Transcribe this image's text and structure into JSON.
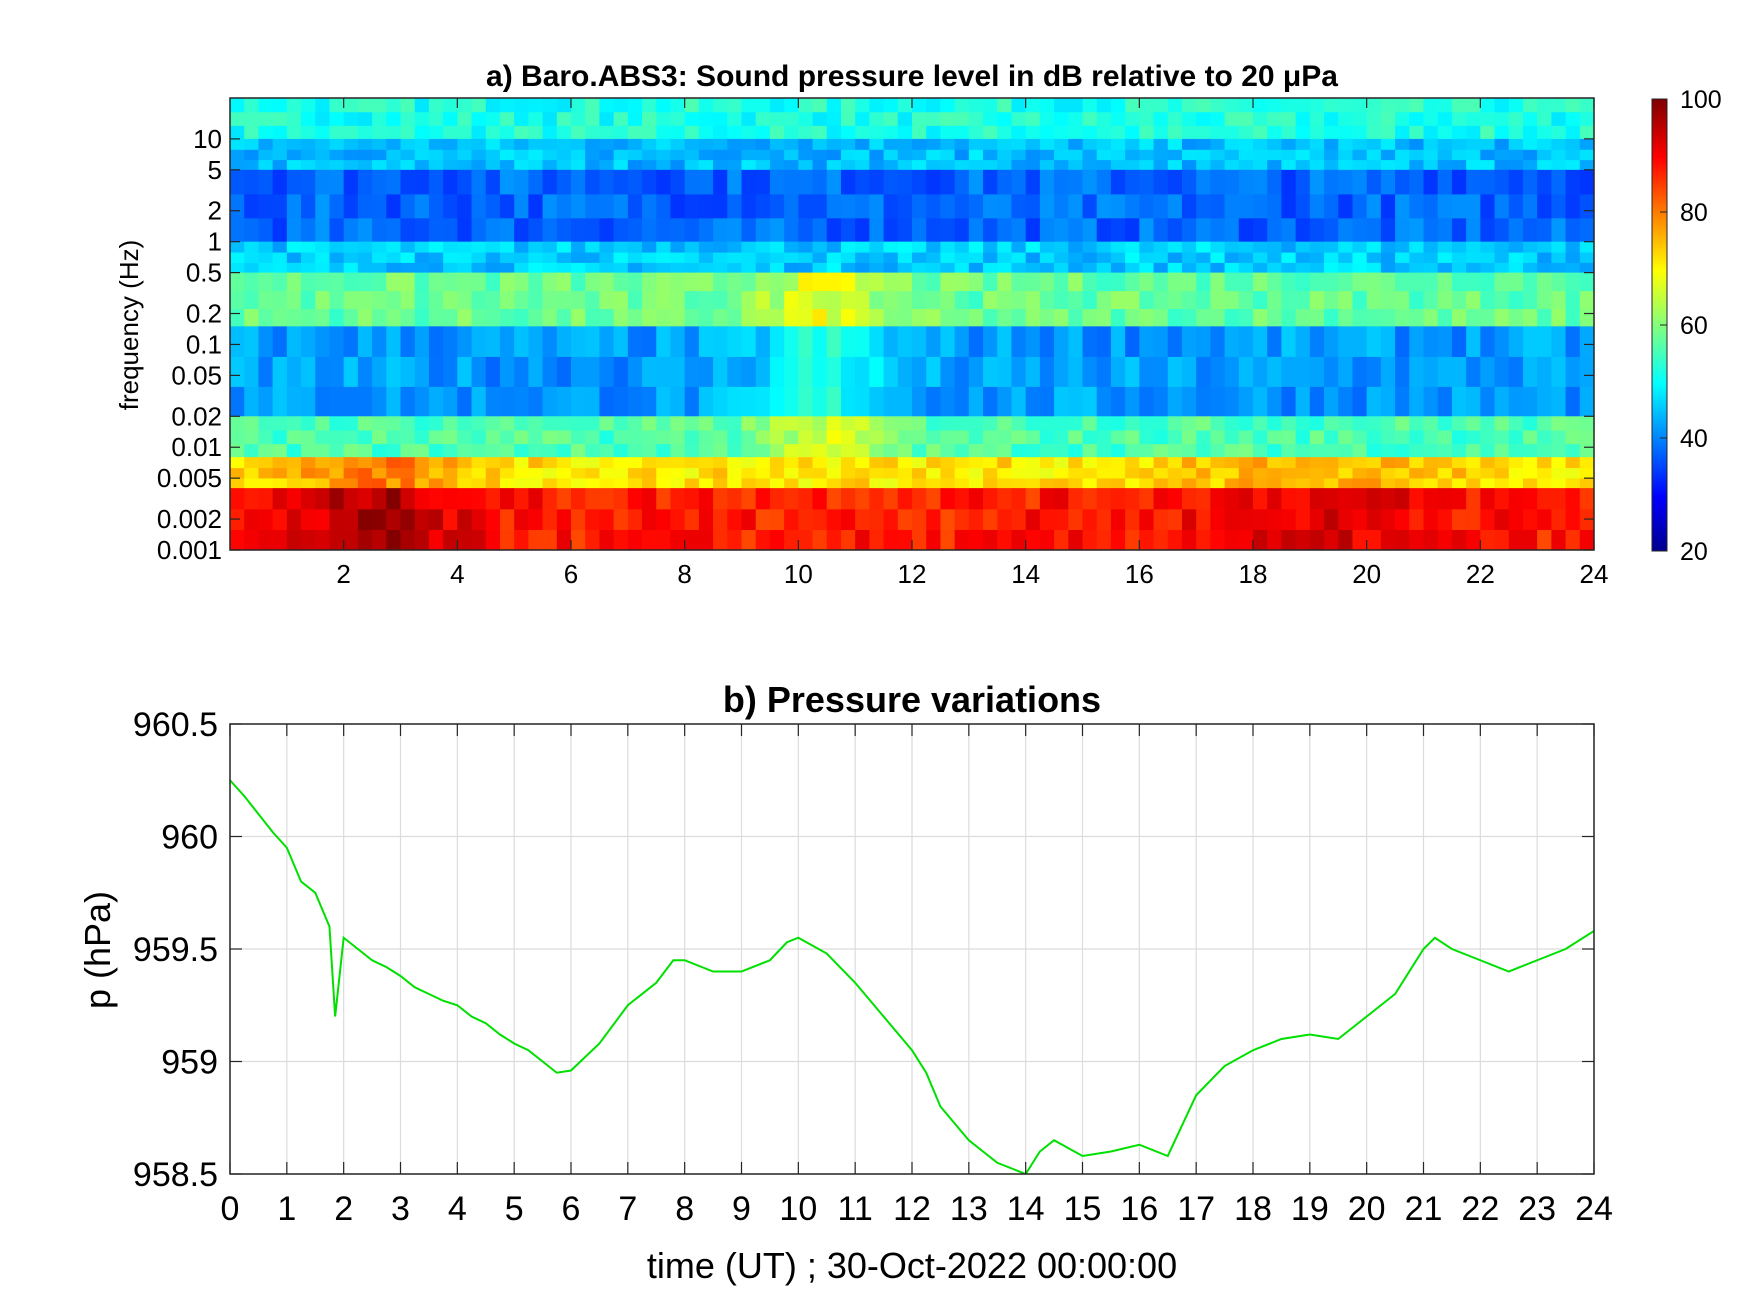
{
  "figure": {
    "panels": 2
  },
  "chart_data": [
    {
      "type": "heatmap",
      "title": "a) Baro.ABS3: Sound pressure level in dB relative to 20 μPa",
      "xlabel": "",
      "ylabel": "frequency (Hz)",
      "xlim": [
        0,
        24
      ],
      "ylim": [
        0.001,
        25
      ],
      "yscale": "log",
      "xticks": [
        2,
        4,
        6,
        8,
        10,
        12,
        14,
        16,
        18,
        20,
        22,
        24
      ],
      "xtick_labels": [
        "2",
        "4",
        "6",
        "8",
        "10",
        "12",
        "14",
        "16",
        "18",
        "20",
        "22",
        "24"
      ],
      "yticks": [
        0.001,
        0.002,
        0.005,
        0.01,
        0.02,
        0.05,
        0.1,
        0.2,
        0.5,
        1,
        2,
        5,
        10
      ],
      "ytick_labels": [
        "0.001",
        "0.002",
        "0.005",
        "0.01",
        "0.02",
        "0.05",
        "0.1",
        "0.2",
        "0.5",
        "1",
        "2",
        "5",
        "10"
      ],
      "colorbar": {
        "range": [
          20,
          100
        ],
        "ticks": [
          20,
          40,
          60,
          80,
          100
        ],
        "tick_labels": [
          "20",
          "40",
          "60",
          "80",
          "100"
        ],
        "colormap": "jet"
      },
      "band_levels_db": [
        {
          "f_from": 10,
          "f_to": 25,
          "db": 52
        },
        {
          "f_from": 5,
          "f_to": 10,
          "db": 45
        },
        {
          "f_from": 1,
          "f_to": 5,
          "db": 38
        },
        {
          "f_from": 0.5,
          "f_to": 1,
          "db": 46
        },
        {
          "f_from": 0.15,
          "f_to": 0.5,
          "db": 58
        },
        {
          "f_from": 0.02,
          "f_to": 0.15,
          "db": 42
        },
        {
          "f_from": 0.008,
          "f_to": 0.02,
          "db": 56
        },
        {
          "f_from": 0.004,
          "f_to": 0.008,
          "db": 72
        },
        {
          "f_from": 0.001,
          "f_to": 0.004,
          "db": 88
        }
      ],
      "grid": false,
      "legend": "none"
    },
    {
      "type": "line",
      "title": "b) Pressure variations",
      "xlabel": "time (UT) ; 30-Oct-2022 00:00:00",
      "ylabel": "p (hPa)",
      "xlim": [
        0,
        24
      ],
      "ylim": [
        958.5,
        960.5
      ],
      "xticks": [
        0,
        1,
        2,
        3,
        4,
        5,
        6,
        7,
        8,
        9,
        10,
        11,
        12,
        13,
        14,
        15,
        16,
        17,
        18,
        19,
        20,
        21,
        22,
        23,
        24
      ],
      "xtick_labels": [
        "0",
        "1",
        "2",
        "3",
        "4",
        "5",
        "6",
        "7",
        "8",
        "9",
        "10",
        "11",
        "12",
        "13",
        "14",
        "15",
        "16",
        "17",
        "18",
        "19",
        "20",
        "21",
        "22",
        "23",
        "24"
      ],
      "yticks": [
        958.5,
        959,
        959.5,
        960,
        960.5
      ],
      "ytick_labels": [
        "958.5",
        "959",
        "959.5",
        "960",
        "960.5"
      ],
      "grid": true,
      "legend": "none",
      "color": "#00e000",
      "series": [
        {
          "x": [
            0,
            0.25,
            0.5,
            0.75,
            1.0,
            1.25,
            1.5,
            1.75,
            1.85,
            2.0,
            2.25,
            2.5,
            2.75,
            3.0,
            3.25,
            3.5,
            3.75,
            4.0,
            4.25,
            4.5,
            4.75,
            5.0,
            5.25,
            5.5,
            5.75,
            6.0,
            6.5,
            7.0,
            7.5,
            7.8,
            8.0,
            8.5,
            9.0,
            9.5,
            9.8,
            10.0,
            10.5,
            11.0,
            11.5,
            12.0,
            12.25,
            12.5,
            13.0,
            13.5,
            13.8,
            14.0,
            14.25,
            14.5,
            15.0,
            15.5,
            16.0,
            16.5,
            17.0,
            17.5,
            18.0,
            18.5,
            19.0,
            19.5,
            20.0,
            20.5,
            21.0,
            21.2,
            21.5,
            22.0,
            22.5,
            23.0,
            23.5,
            24.0
          ],
          "y": [
            960.25,
            960.18,
            960.1,
            960.02,
            959.95,
            959.8,
            959.75,
            959.6,
            959.2,
            959.55,
            959.5,
            959.45,
            959.42,
            959.38,
            959.33,
            959.3,
            959.27,
            959.25,
            959.2,
            959.17,
            959.12,
            959.08,
            959.05,
            959.0,
            958.95,
            958.96,
            959.08,
            959.25,
            959.35,
            959.45,
            959.45,
            959.4,
            959.4,
            959.45,
            959.53,
            959.55,
            959.48,
            959.35,
            959.2,
            959.05,
            958.95,
            958.8,
            958.65,
            958.55,
            958.52,
            958.5,
            958.6,
            958.65,
            958.58,
            958.6,
            958.63,
            958.58,
            958.85,
            958.98,
            959.05,
            959.1,
            959.12,
            959.1,
            959.2,
            959.3,
            959.5,
            959.55,
            959.5,
            959.45,
            959.4,
            959.45,
            959.5,
            959.58
          ]
        }
      ]
    }
  ]
}
